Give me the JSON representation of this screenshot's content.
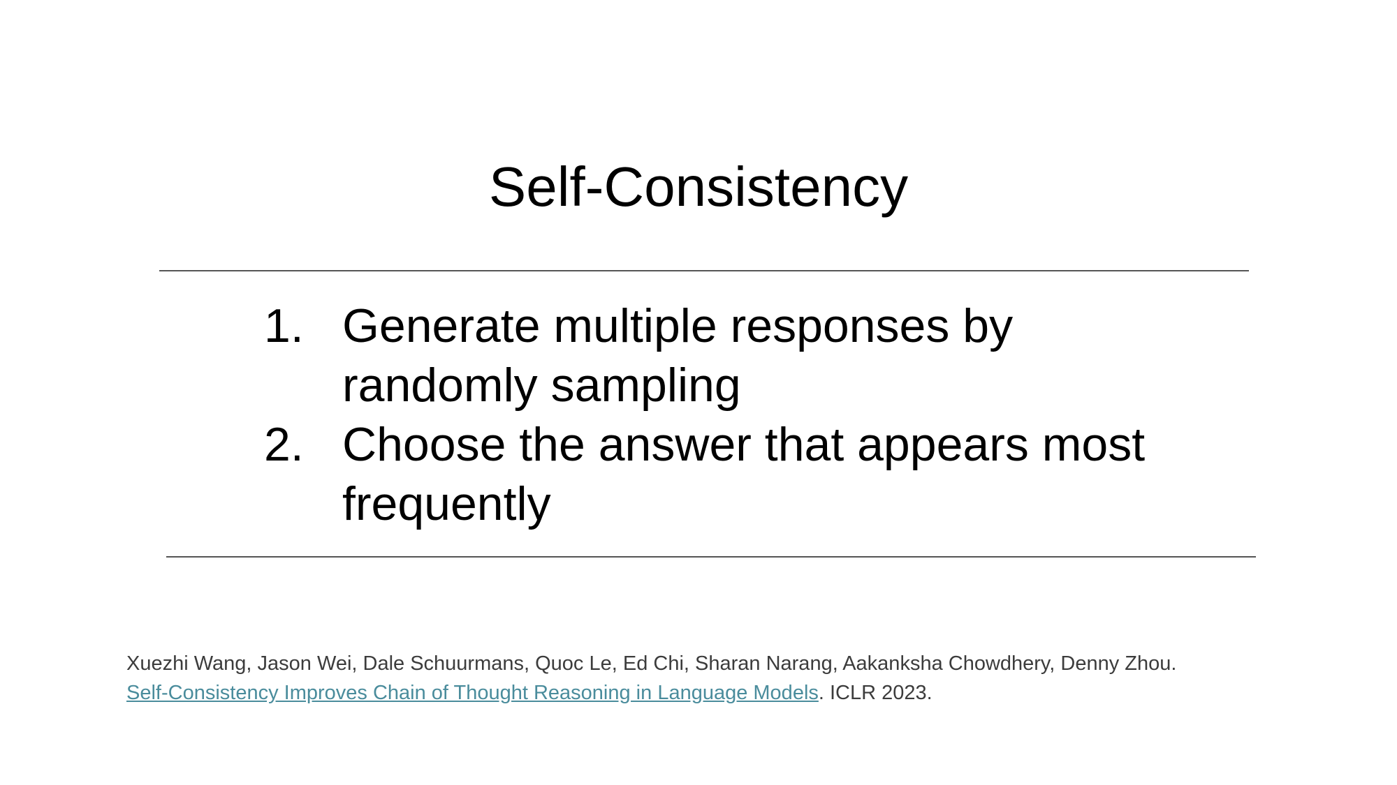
{
  "slide": {
    "title": "Self-Consistency",
    "steps": [
      {
        "number": "1.",
        "text": "Generate multiple responses by randomly sampling"
      },
      {
        "number": "2.",
        "text": "Choose the answer that appears most frequently"
      }
    ],
    "citation": {
      "authors": "Xuezhi Wang, Jason Wei, Dale Schuurmans, Quoc Le, Ed Chi, Sharan Narang, Aakanksha Chowdhery, Denny Zhou.",
      "paper_link_text": "Self-Consistency Improves Chain of Thought Reasoning in Language Models",
      "venue": ". ICLR 2023."
    }
  },
  "colors": {
    "text": "#000000",
    "citation_text": "#3c3c3c",
    "link": "#4a8c9c",
    "rule": "#555555",
    "background": "#ffffff"
  }
}
